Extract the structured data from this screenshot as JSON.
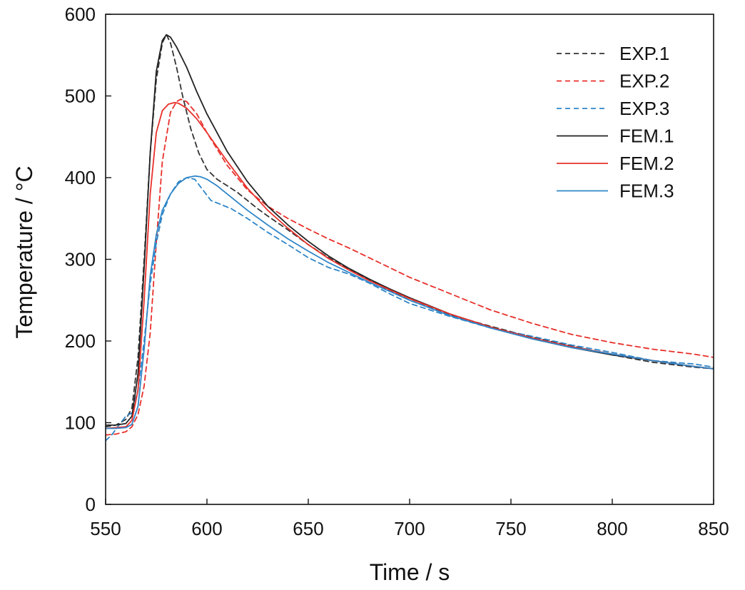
{
  "chart_data": {
    "type": "line",
    "xlabel": "Time / s",
    "ylabel": "Temperature / °C",
    "xlim": [
      550,
      850
    ],
    "ylim": [
      0,
      600
    ],
    "xticks": [
      550,
      600,
      650,
      700,
      750,
      800,
      850
    ],
    "yticks": [
      0,
      100,
      200,
      300,
      400,
      500,
      600
    ],
    "xtick_labels": [
      "550",
      "600",
      "650",
      "700",
      "750",
      "800",
      "850"
    ],
    "ytick_labels": [
      "0",
      "100",
      "200",
      "300",
      "400",
      "500",
      "600"
    ],
    "grid": false,
    "legend_position": "top-right",
    "series": [
      {
        "name": "EXP.1",
        "color": "#333333",
        "style": "dashed",
        "x": [
          550,
          555,
          560,
          563,
          566,
          569,
          572,
          575,
          578,
          580,
          582,
          585,
          588,
          592,
          596,
          600,
          605,
          610,
          615,
          620,
          625,
          630,
          640,
          650,
          660,
          670,
          680,
          690,
          700,
          720,
          740,
          760,
          780,
          800,
          820,
          840,
          850
        ],
        "y": [
          95,
          97,
          104,
          118,
          180,
          300,
          430,
          520,
          565,
          575,
          565,
          535,
          500,
          460,
          430,
          410,
          398,
          390,
          382,
          372,
          362,
          353,
          336,
          318,
          302,
          288,
          275,
          262,
          250,
          232,
          218,
          205,
          194,
          183,
          174,
          168,
          166
        ]
      },
      {
        "name": "EXP.2",
        "color": "#e8302a",
        "style": "dashed",
        "x": [
          550,
          555,
          560,
          563,
          566,
          569,
          572,
          575,
          578,
          582,
          585,
          587,
          590,
          595,
          600,
          610,
          620,
          630,
          640,
          650,
          660,
          670,
          680,
          690,
          700,
          720,
          740,
          760,
          780,
          800,
          820,
          840,
          850
        ],
        "y": [
          85,
          86,
          89,
          95,
          110,
          145,
          210,
          320,
          420,
          480,
          493,
          496,
          493,
          478,
          455,
          415,
          385,
          365,
          350,
          337,
          325,
          314,
          302,
          290,
          278,
          258,
          238,
          222,
          208,
          198,
          190,
          184,
          180
        ]
      },
      {
        "name": "EXP.3",
        "color": "#2f86c8",
        "style": "dashed",
        "x": [
          550,
          553,
          556,
          560,
          563,
          566,
          569,
          572,
          575,
          578,
          582,
          586,
          590,
          594,
          598,
          602,
          606,
          612,
          620,
          630,
          640,
          650,
          660,
          670,
          680,
          690,
          700,
          720,
          740,
          760,
          780,
          800,
          820,
          840,
          850
        ],
        "y": [
          78,
          85,
          95,
          108,
          112,
          140,
          200,
          270,
          320,
          355,
          380,
          395,
          400,
          398,
          385,
          372,
          368,
          362,
          350,
          333,
          318,
          302,
          290,
          282,
          271,
          258,
          246,
          230,
          216,
          206,
          195,
          186,
          176,
          172,
          168
        ]
      },
      {
        "name": "FEM.1",
        "color": "#222222",
        "style": "solid",
        "x": [
          550,
          555,
          560,
          563,
          566,
          569,
          572,
          575,
          578,
          580,
          582,
          585,
          590,
          595,
          600,
          610,
          620,
          630,
          640,
          650,
          660,
          670,
          680,
          690,
          700,
          720,
          740,
          760,
          780,
          800,
          820,
          840,
          850
        ],
        "y": [
          97,
          97,
          99,
          108,
          160,
          290,
          430,
          530,
          568,
          575,
          572,
          560,
          535,
          505,
          478,
          432,
          395,
          365,
          342,
          322,
          304,
          289,
          276,
          264,
          253,
          233,
          217,
          203,
          192,
          183,
          176,
          169,
          166
        ]
      },
      {
        "name": "FEM.2",
        "color": "#e8302a",
        "style": "solid",
        "x": [
          550,
          555,
          560,
          563,
          566,
          569,
          572,
          575,
          578,
          581,
          584,
          586,
          590,
          595,
          600,
          610,
          620,
          630,
          640,
          650,
          660,
          670,
          680,
          690,
          700,
          720,
          740,
          760,
          780,
          800,
          820,
          840,
          850
        ],
        "y": [
          93,
          94,
          95,
          103,
          140,
          250,
          380,
          455,
          482,
          490,
          492,
          491,
          485,
          472,
          455,
          420,
          387,
          360,
          338,
          318,
          301,
          287,
          274,
          263,
          252,
          233,
          217,
          204,
          193,
          184,
          176,
          169,
          166
        ]
      },
      {
        "name": "FEM.3",
        "color": "#2f86c8",
        "style": "solid",
        "x": [
          550,
          555,
          560,
          563,
          566,
          569,
          572,
          575,
          578,
          582,
          586,
          590,
          594,
          597,
          600,
          605,
          610,
          620,
          630,
          640,
          650,
          660,
          670,
          680,
          690,
          700,
          720,
          740,
          760,
          780,
          800,
          820,
          840,
          850
        ],
        "y": [
          93,
          93,
          94,
          98,
          120,
          190,
          280,
          330,
          360,
          380,
          393,
          400,
          402,
          401,
          398,
          390,
          380,
          360,
          342,
          325,
          310,
          296,
          284,
          272,
          261,
          250,
          231,
          216,
          203,
          192,
          184,
          176,
          169,
          166
        ]
      }
    ]
  }
}
